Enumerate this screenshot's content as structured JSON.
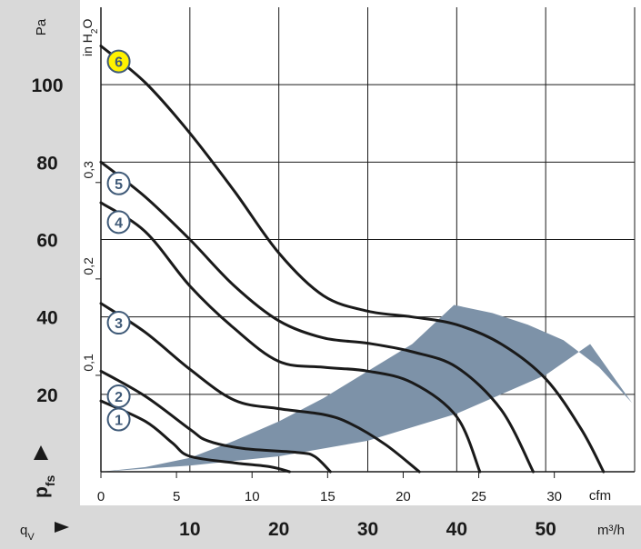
{
  "chart_data": {
    "type": "line",
    "title": "",
    "x_axis": {
      "ticks": [
        10,
        20,
        30,
        40,
        50
      ],
      "unit": "m³/h",
      "label": "q",
      "label_sub": "V",
      "range": [
        0,
        60
      ]
    },
    "x_axis_secondary": {
      "ticks": [
        0,
        5,
        10,
        15,
        20,
        25,
        30
      ],
      "unit": "cfm"
    },
    "y_axis": {
      "ticks": [
        20,
        40,
        60,
        80,
        100
      ],
      "unit": "Pa",
      "label": "p",
      "label_sub": "fs",
      "range": [
        0,
        120
      ]
    },
    "y_axis_secondary": {
      "ticks": [
        "0,1",
        "0,2",
        "0,3"
      ],
      "tick_values": [
        0.1,
        0.2,
        0.3
      ],
      "unit": "in H",
      "unit_sub": "2",
      "unit_end": "O"
    },
    "grid": true,
    "colors": {
      "band": "#7d92a8",
      "curve": "#1a1a1a",
      "marker_fill": "#ffffff",
      "marker_stroke": "#3f5a78",
      "highlight_fill": "#fff200",
      "axis_panel": "#d9d9d9"
    },
    "operating_region": [
      [
        0,
        0
      ],
      [
        10,
        1.6
      ],
      [
        20,
        4
      ],
      [
        30,
        8
      ],
      [
        40,
        15
      ],
      [
        50,
        25
      ],
      [
        55,
        33
      ],
      [
        59.7,
        17.8
      ],
      [
        56,
        27
      ],
      [
        52,
        34
      ],
      [
        48,
        38
      ],
      [
        44,
        41
      ],
      [
        39.7,
        43.1
      ],
      [
        35,
        33
      ],
      [
        30,
        26
      ],
      [
        25,
        19
      ],
      [
        20,
        13
      ],
      [
        15,
        8
      ],
      [
        10,
        3.6
      ],
      [
        5,
        1.2
      ],
      [
        0,
        0
      ]
    ],
    "series": [
      {
        "name": "1",
        "marker_at": [
          2,
          13.5
        ],
        "highlight": false,
        "points": [
          [
            0,
            18.3
          ],
          [
            5,
            13
          ],
          [
            8,
            7.5
          ],
          [
            10,
            4
          ],
          [
            15,
            2.3
          ],
          [
            19,
            1.3
          ],
          [
            21.2,
            0
          ]
        ]
      },
      {
        "name": "2",
        "marker_at": [
          2,
          19.5
        ],
        "highlight": false,
        "points": [
          [
            0,
            26
          ],
          [
            5,
            19.5
          ],
          [
            10,
            11
          ],
          [
            12,
            8
          ],
          [
            16,
            6
          ],
          [
            22,
            5
          ],
          [
            24,
            4
          ],
          [
            25.8,
            0
          ]
        ]
      },
      {
        "name": "3",
        "marker_at": [
          2,
          38.5
        ],
        "highlight": false,
        "points": [
          [
            0,
            43.5
          ],
          [
            5,
            36
          ],
          [
            10,
            26.5
          ],
          [
            15,
            18.5
          ],
          [
            20,
            16.3
          ],
          [
            25,
            14.8
          ],
          [
            28,
            12.5
          ],
          [
            32,
            7
          ],
          [
            35.8,
            0
          ]
        ]
      },
      {
        "name": "4",
        "marker_at": [
          2,
          64.5
        ],
        "highlight": false,
        "points": [
          [
            0,
            69.5
          ],
          [
            5,
            62
          ],
          [
            10,
            48
          ],
          [
            15,
            37
          ],
          [
            20,
            28.5
          ],
          [
            25,
            27
          ],
          [
            30,
            26
          ],
          [
            35,
            23
          ],
          [
            40,
            14.2
          ],
          [
            42.6,
            0
          ]
        ]
      },
      {
        "name": "5",
        "marker_at": [
          2,
          74.5
        ],
        "highlight": false,
        "points": [
          [
            0,
            80
          ],
          [
            5,
            71
          ],
          [
            10,
            60
          ],
          [
            15,
            48
          ],
          [
            20,
            39
          ],
          [
            25,
            34.6
          ],
          [
            30,
            33.2
          ],
          [
            35,
            31
          ],
          [
            40,
            27
          ],
          [
            45,
            16
          ],
          [
            48.6,
            0
          ]
        ]
      },
      {
        "name": "6",
        "marker_at": [
          2,
          106
        ],
        "highlight": true,
        "points": [
          [
            0,
            110
          ],
          [
            5,
            100.5
          ],
          [
            10,
            87.5
          ],
          [
            15,
            72.5
          ],
          [
            20,
            56.5
          ],
          [
            25,
            45.5
          ],
          [
            30,
            41.5
          ],
          [
            35,
            40
          ],
          [
            40,
            38
          ],
          [
            45,
            33
          ],
          [
            50,
            24
          ],
          [
            54,
            11
          ],
          [
            56.5,
            0
          ]
        ]
      }
    ]
  }
}
